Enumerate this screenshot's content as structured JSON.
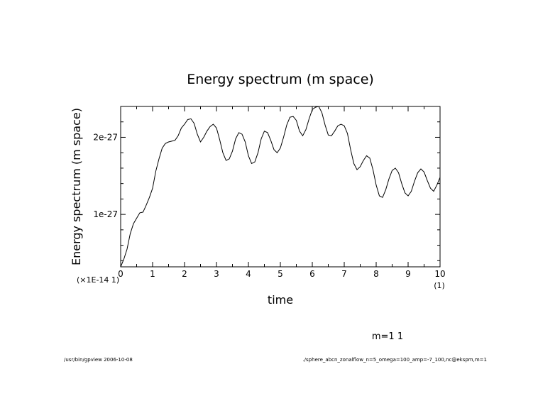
{
  "chart_data": {
    "type": "line",
    "title": "Energy spectrum (m space)",
    "xlabel": "time",
    "ylabel": "Energy spectrum (m space)",
    "x_multiplier_label": "(1)",
    "y_multiplier_label": "(×1E-14 1)",
    "annotation": "m=1 1",
    "xlim": [
      0,
      10
    ],
    "ylim": [
      3.2e-28,
      2.4e-27
    ],
    "x_ticks": [
      0,
      1,
      2,
      3,
      4,
      5,
      6,
      7,
      8,
      9,
      10
    ],
    "x_tick_labels": [
      "0",
      "1",
      "2",
      "3",
      "4",
      "5",
      "6",
      "7",
      "8",
      "9",
      "10"
    ],
    "y_ticks": [
      1e-27,
      2e-27
    ],
    "y_tick_labels": [
      "1e-27",
      "2e-27"
    ],
    "grid": false,
    "series": [
      {
        "name": "m=1 1",
        "x": [
          0,
          0.1,
          0.2,
          0.3,
          0.4,
          0.5,
          0.6,
          0.7,
          0.8,
          0.9,
          1.0,
          1.1,
          1.2,
          1.3,
          1.4,
          1.5,
          1.6,
          1.7,
          1.8,
          1.9,
          2.0,
          2.1,
          2.2,
          2.3,
          2.4,
          2.5,
          2.6,
          2.7,
          2.8,
          2.9,
          3.0,
          3.1,
          3.2,
          3.3,
          3.4,
          3.5,
          3.6,
          3.7,
          3.8,
          3.9,
          4.0,
          4.1,
          4.2,
          4.3,
          4.4,
          4.5,
          4.6,
          4.7,
          4.8,
          4.9,
          5.0,
          5.1,
          5.2,
          5.3,
          5.4,
          5.5,
          5.6,
          5.7,
          5.8,
          5.9,
          6.0,
          6.1,
          6.2,
          6.3,
          6.4,
          6.5,
          6.6,
          6.7,
          6.8,
          6.9,
          7.0,
          7.1,
          7.2,
          7.3,
          7.4,
          7.5,
          7.6,
          7.7,
          7.8,
          7.9,
          8.0,
          8.1,
          8.2,
          8.3,
          8.4,
          8.5,
          8.6,
          8.7,
          8.8,
          8.9,
          9.0,
          9.1,
          9.2,
          9.3,
          9.4,
          9.5,
          9.6,
          9.7,
          9.8,
          9.9,
          10.0
        ],
        "y": [
          3.2e-28,
          4.2e-28,
          5.5e-28,
          7.5e-28,
          8.8e-28,
          9.5e-28,
          1.02e-27,
          1.03e-27,
          1.12e-27,
          1.22e-27,
          1.34e-27,
          1.56e-27,
          1.72e-27,
          1.86e-27,
          1.92e-27,
          1.94e-27,
          1.95e-27,
          1.96e-27,
          2.02e-27,
          2.12e-27,
          2.17e-27,
          2.23e-27,
          2.24e-27,
          2.18e-27,
          2.04e-27,
          1.94e-27,
          2e-27,
          2.08e-27,
          2.14e-27,
          2.17e-27,
          2.12e-27,
          1.97e-27,
          1.8e-27,
          1.7e-27,
          1.72e-27,
          1.82e-27,
          1.98e-27,
          2.06e-27,
          2.04e-27,
          1.94e-27,
          1.76e-27,
          1.66e-27,
          1.68e-27,
          1.8e-27,
          1.98e-27,
          2.08e-27,
          2.06e-27,
          1.96e-27,
          1.84e-27,
          1.8e-27,
          1.86e-27,
          2e-27,
          2.16e-27,
          2.26e-27,
          2.27e-27,
          2.22e-27,
          2.08e-27,
          2.02e-27,
          2.1e-27,
          2.24e-27,
          2.36e-27,
          2.39e-27,
          2.4e-27,
          2.32e-27,
          2.16e-27,
          2.03e-27,
          2.02e-27,
          2.08e-27,
          2.15e-27,
          2.17e-27,
          2.15e-27,
          2.05e-27,
          1.84e-27,
          1.66e-27,
          1.58e-27,
          1.62e-27,
          1.7e-27,
          1.76e-27,
          1.73e-27,
          1.58e-27,
          1.38e-27,
          1.24e-27,
          1.22e-27,
          1.32e-27,
          1.46e-27,
          1.57e-27,
          1.6e-27,
          1.54e-27,
          1.4e-27,
          1.28e-27,
          1.24e-27,
          1.3e-27,
          1.43e-27,
          1.54e-27,
          1.59e-27,
          1.55e-27,
          1.44e-27,
          1.34e-27,
          1.3e-27,
          1.38e-27,
          1.48e-27
        ]
      }
    ]
  },
  "footer": {
    "left": "/usr/bin/gpview  2006-10-08",
    "right": "./sphere_abcn_zonalflow_n=5_omega=100_amp=-7_100,nc@ekspm,m=1"
  }
}
